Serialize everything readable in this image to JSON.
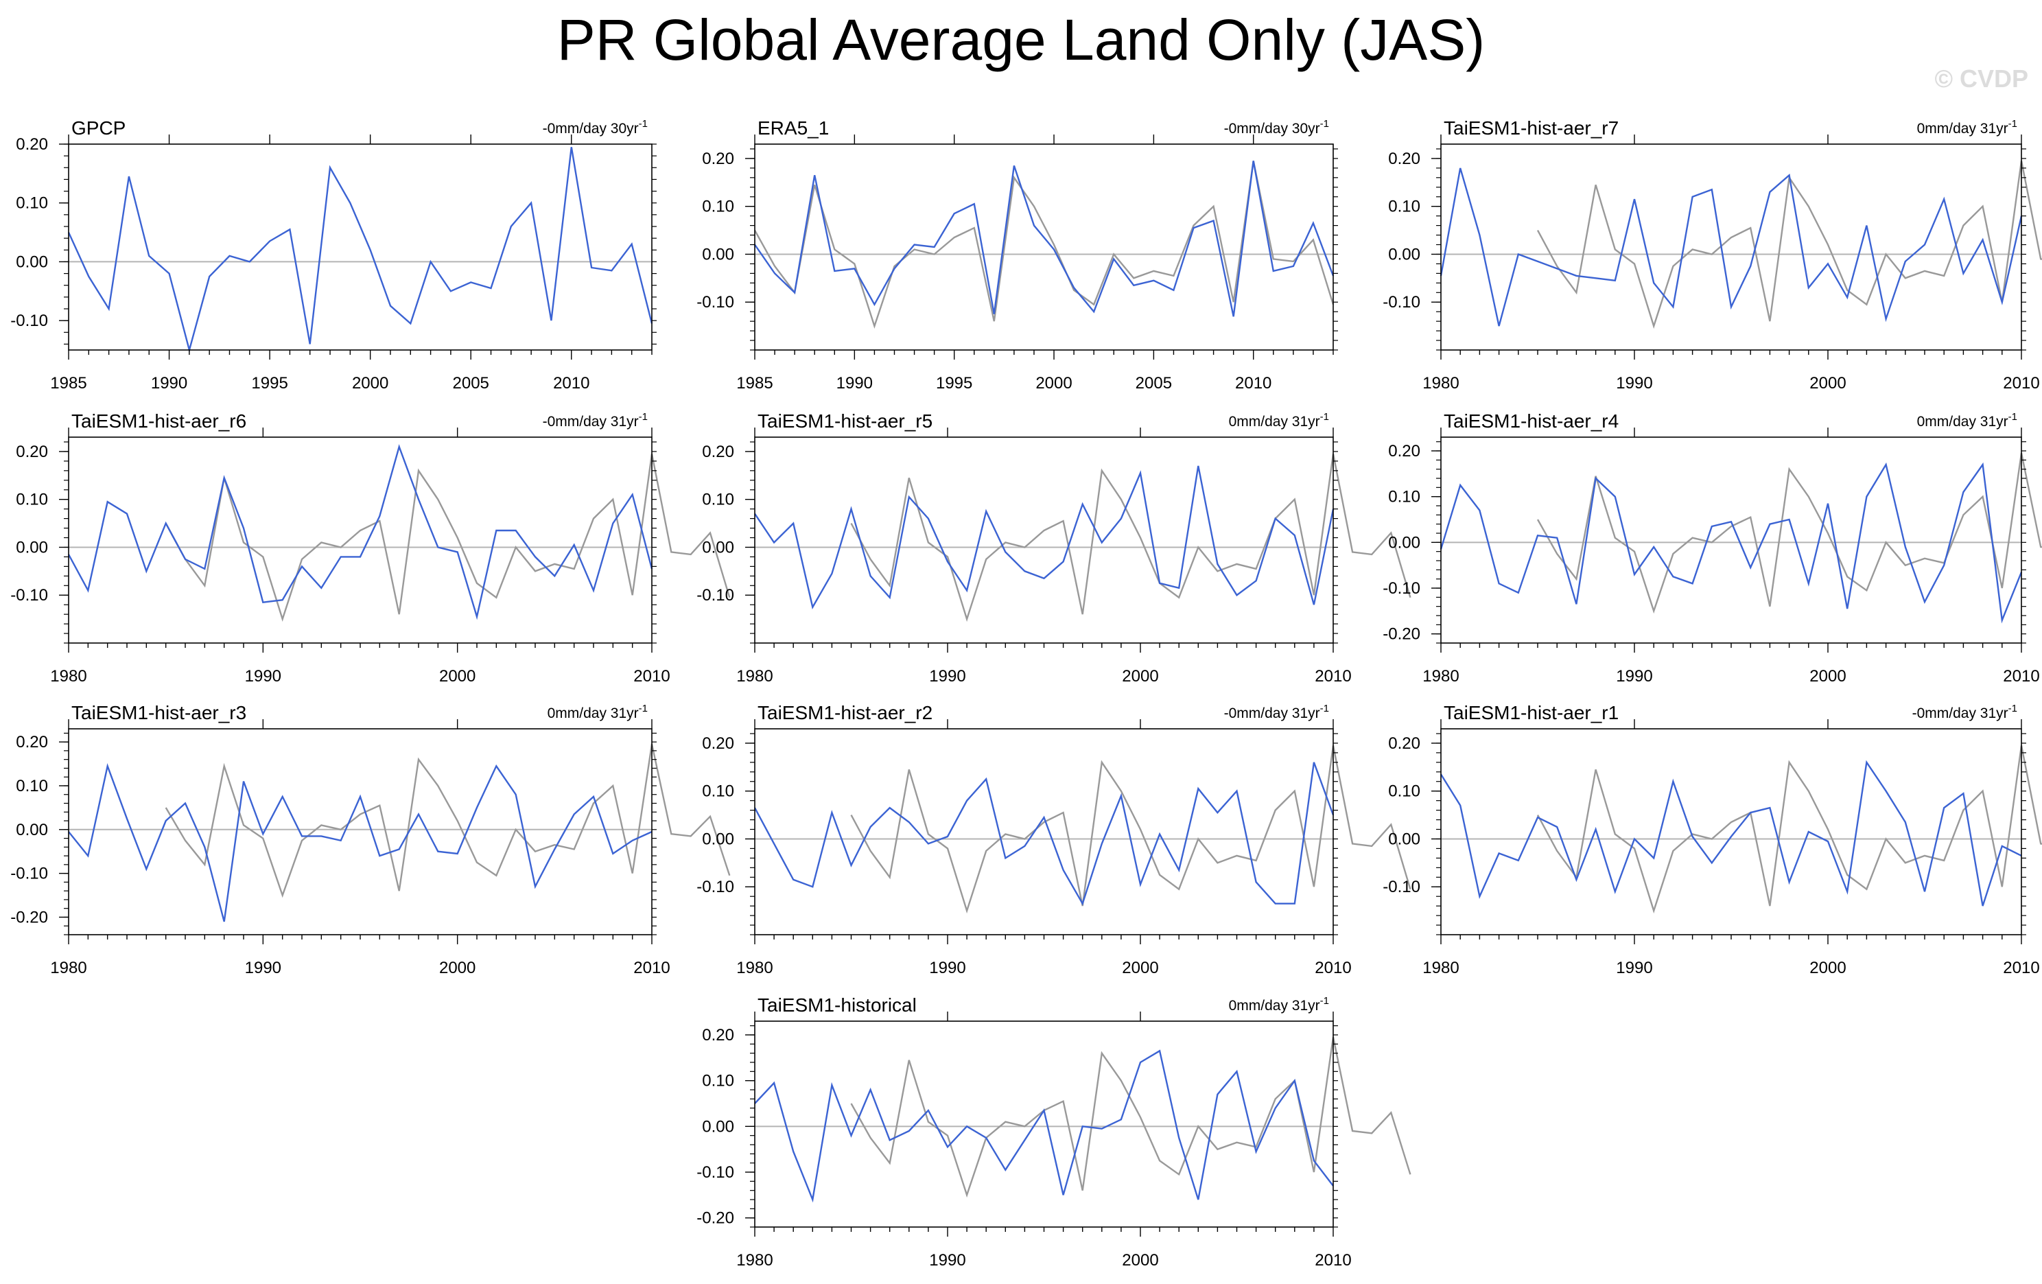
{
  "figure": {
    "title": "PR Global Average Land Only (JAS)",
    "watermark": "© CVDP",
    "colors": {
      "model": "#3b63d3",
      "obs": "#999999",
      "zero": "#b4b4b4",
      "axis": "#000000"
    }
  },
  "chart_data": [
    {
      "type": "line",
      "title": "GPCP",
      "trend": "-0mm/day 30yr",
      "trend_exp": "-1",
      "xlim": [
        1985,
        2014
      ],
      "ylim": [
        -0.15,
        0.2
      ],
      "xticks": [
        1985,
        1990,
        1995,
        2000,
        2005,
        2010
      ],
      "yticks": [
        -0.1,
        0.0,
        0.1,
        0.2
      ],
      "ytick_labels": [
        "-0.10",
        "0.00",
        "0.10",
        "0.20"
      ],
      "series": [
        {
          "name": "GPCP",
          "role": "model",
          "x_start": 1985,
          "values": [
            0.05,
            -0.025,
            -0.08,
            0.145,
            0.01,
            -0.02,
            -0.15,
            -0.025,
            0.01,
            0.0,
            0.035,
            0.055,
            -0.14,
            0.16,
            0.1,
            0.02,
            -0.075,
            -0.105,
            0.0,
            -0.05,
            -0.035,
            -0.045,
            0.06,
            0.1,
            -0.1,
            0.195,
            -0.01,
            -0.015,
            0.03,
            -0.105
          ]
        }
      ]
    },
    {
      "type": "line",
      "title": "ERA5_1",
      "trend": "-0mm/day 30yr",
      "trend_exp": "-1",
      "xlim": [
        1985,
        2014
      ],
      "ylim": [
        -0.2,
        0.23
      ],
      "xticks": [
        1985,
        1990,
        1995,
        2000,
        2005,
        2010
      ],
      "yticks": [
        -0.1,
        0.0,
        0.1,
        0.2
      ],
      "ytick_labels": [
        "-0.10",
        "0.00",
        "0.10",
        "0.20"
      ],
      "series": [
        {
          "name": "GPCP",
          "role": "obs",
          "x_start": 1985,
          "values": [
            0.05,
            -0.025,
            -0.08,
            0.145,
            0.01,
            -0.02,
            -0.15,
            -0.025,
            0.01,
            0.0,
            0.035,
            0.055,
            -0.14,
            0.16,
            0.1,
            0.02,
            -0.075,
            -0.105,
            0.0,
            -0.05,
            -0.035,
            -0.045,
            0.06,
            0.1,
            -0.1,
            0.195,
            -0.01,
            -0.015,
            0.03,
            -0.105
          ]
        },
        {
          "name": "ERA5_1",
          "role": "model",
          "x_start": 1985,
          "values": [
            0.02,
            -0.04,
            -0.08,
            0.165,
            -0.035,
            -0.03,
            -0.105,
            -0.03,
            0.02,
            0.015,
            0.085,
            0.105,
            -0.125,
            0.185,
            0.06,
            0.01,
            -0.07,
            -0.12,
            -0.01,
            -0.065,
            -0.055,
            -0.075,
            0.055,
            0.07,
            -0.13,
            0.195,
            -0.035,
            -0.025,
            0.065,
            -0.045
          ]
        }
      ]
    },
    {
      "type": "line",
      "title": "TaiESM1-hist-aer_r7",
      "trend": "0mm/day 31yr",
      "trend_exp": "-1",
      "xlim": [
        1980,
        2010
      ],
      "ylim": [
        -0.2,
        0.23
      ],
      "xticks": [
        1980,
        1990,
        2000,
        2010
      ],
      "yticks": [
        -0.1,
        0.0,
        0.1,
        0.2
      ],
      "ytick_labels": [
        "-0.10",
        "0.00",
        "0.10",
        "0.20"
      ],
      "series": [
        {
          "name": "GPCP",
          "role": "obs",
          "x_start": 1985,
          "values": [
            0.05,
            -0.025,
            -0.08,
            0.145,
            0.01,
            -0.02,
            -0.15,
            -0.025,
            0.01,
            0.0,
            0.035,
            0.055,
            -0.14,
            0.16,
            0.1,
            0.02,
            -0.075,
            -0.105,
            0.0,
            -0.05,
            -0.035,
            -0.045,
            0.06,
            0.1,
            -0.1,
            0.195,
            -0.01,
            -0.015,
            0.03,
            -0.105
          ]
        },
        {
          "name": "TaiESM1-hist-aer_r7",
          "role": "model",
          "x_start": 1980,
          "values": [
            -0.045,
            0.18,
            0.04,
            -0.15,
            0.0,
            -0.015,
            -0.03,
            -0.045,
            -0.05,
            -0.055,
            0.115,
            -0.06,
            -0.11,
            0.12,
            0.135,
            -0.11,
            -0.025,
            0.13,
            0.165,
            -0.07,
            -0.02,
            -0.09,
            0.06,
            -0.135,
            -0.015,
            0.02,
            0.115,
            -0.04,
            0.03,
            -0.1,
            0.08
          ]
        }
      ]
    },
    {
      "type": "line",
      "title": "TaiESM1-hist-aer_r6",
      "trend": "-0mm/day 31yr",
      "trend_exp": "-1",
      "xlim": [
        1980,
        2010
      ],
      "ylim": [
        -0.2,
        0.23
      ],
      "xticks": [
        1980,
        1990,
        2000,
        2010
      ],
      "yticks": [
        -0.1,
        0.0,
        0.1,
        0.2
      ],
      "ytick_labels": [
        "-0.10",
        "0.00",
        "0.10",
        "0.20"
      ],
      "series": [
        {
          "name": "GPCP",
          "role": "obs",
          "x_start": 1985,
          "values": [
            0.05,
            -0.025,
            -0.08,
            0.145,
            0.01,
            -0.02,
            -0.15,
            -0.025,
            0.01,
            0.0,
            0.035,
            0.055,
            -0.14,
            0.16,
            0.1,
            0.02,
            -0.075,
            -0.105,
            0.0,
            -0.05,
            -0.035,
            -0.045,
            0.06,
            0.1,
            -0.1,
            0.195,
            -0.01,
            -0.015,
            0.03,
            -0.105
          ]
        },
        {
          "name": "TaiESM1-hist-aer_r6",
          "role": "model",
          "x_start": 1980,
          "values": [
            -0.015,
            -0.09,
            0.095,
            0.07,
            -0.05,
            0.05,
            -0.025,
            -0.045,
            0.145,
            0.04,
            -0.115,
            -0.11,
            -0.04,
            -0.085,
            -0.02,
            -0.02,
            0.065,
            0.21,
            0.1,
            0.0,
            -0.01,
            -0.145,
            0.035,
            0.035,
            -0.02,
            -0.06,
            0.005,
            -0.09,
            0.05,
            0.11,
            -0.045
          ]
        }
      ]
    },
    {
      "type": "line",
      "title": "TaiESM1-hist-aer_r5",
      "trend": "0mm/day 31yr",
      "trend_exp": "-1",
      "xlim": [
        1980,
        2010
      ],
      "ylim": [
        -0.2,
        0.23
      ],
      "xticks": [
        1980,
        1990,
        2000,
        2010
      ],
      "yticks": [
        -0.1,
        0.0,
        0.1,
        0.2
      ],
      "ytick_labels": [
        "-0.10",
        "0.00",
        "0.10",
        "0.20"
      ],
      "series": [
        {
          "name": "GPCP",
          "role": "obs",
          "x_start": 1985,
          "values": [
            0.05,
            -0.025,
            -0.08,
            0.145,
            0.01,
            -0.02,
            -0.15,
            -0.025,
            0.01,
            0.0,
            0.035,
            0.055,
            -0.14,
            0.16,
            0.1,
            0.02,
            -0.075,
            -0.105,
            0.0,
            -0.05,
            -0.035,
            -0.045,
            0.06,
            0.1,
            -0.1,
            0.195,
            -0.01,
            -0.015,
            0.03,
            -0.105
          ]
        },
        {
          "name": "TaiESM1-hist-aer_r5",
          "role": "model",
          "x_start": 1980,
          "values": [
            0.07,
            0.01,
            0.05,
            -0.125,
            -0.055,
            0.08,
            -0.06,
            -0.105,
            0.105,
            0.06,
            -0.03,
            -0.09,
            0.075,
            -0.01,
            -0.05,
            -0.065,
            -0.03,
            0.09,
            0.01,
            0.06,
            0.155,
            -0.075,
            -0.085,
            0.17,
            -0.035,
            -0.1,
            -0.07,
            0.06,
            0.025,
            -0.12,
            0.08
          ]
        }
      ]
    },
    {
      "type": "line",
      "title": "TaiESM1-hist-aer_r4",
      "trend": "0mm/day 31yr",
      "trend_exp": "-1",
      "xlim": [
        1980,
        2010
      ],
      "ylim": [
        -0.22,
        0.23
      ],
      "xticks": [
        1980,
        1990,
        2000,
        2010
      ],
      "yticks": [
        -0.2,
        -0.1,
        0.0,
        0.1,
        0.2
      ],
      "ytick_labels": [
        "-0.20",
        "-0.10",
        "0.00",
        "0.10",
        "0.20"
      ],
      "series": [
        {
          "name": "GPCP",
          "role": "obs",
          "x_start": 1985,
          "values": [
            0.05,
            -0.025,
            -0.08,
            0.145,
            0.01,
            -0.02,
            -0.15,
            -0.025,
            0.01,
            0.0,
            0.035,
            0.055,
            -0.14,
            0.16,
            0.1,
            0.02,
            -0.075,
            -0.105,
            0.0,
            -0.05,
            -0.035,
            -0.045,
            0.06,
            0.1,
            -0.1,
            0.195,
            -0.01,
            -0.015,
            0.03,
            -0.105
          ]
        },
        {
          "name": "TaiESM1-hist-aer_r4",
          "role": "model",
          "x_start": 1980,
          "values": [
            -0.015,
            0.125,
            0.07,
            -0.09,
            -0.11,
            0.015,
            0.01,
            -0.135,
            0.14,
            0.1,
            -0.07,
            -0.01,
            -0.075,
            -0.09,
            0.035,
            0.045,
            -0.055,
            0.04,
            0.05,
            -0.09,
            0.085,
            -0.145,
            0.1,
            0.17,
            -0.01,
            -0.13,
            -0.05,
            0.11,
            0.17,
            -0.17,
            -0.065
          ]
        }
      ]
    },
    {
      "type": "line",
      "title": "TaiESM1-hist-aer_r3",
      "trend": "0mm/day 31yr",
      "trend_exp": "-1",
      "xlim": [
        1980,
        2010
      ],
      "ylim": [
        -0.24,
        0.23
      ],
      "xticks": [
        1980,
        1990,
        2000,
        2010
      ],
      "yticks": [
        -0.2,
        -0.1,
        0.0,
        0.1,
        0.2
      ],
      "ytick_labels": [
        "-0.20",
        "-0.10",
        "0.00",
        "0.10",
        "0.20"
      ],
      "series": [
        {
          "name": "GPCP",
          "role": "obs",
          "x_start": 1985,
          "values": [
            0.05,
            -0.025,
            -0.08,
            0.145,
            0.01,
            -0.02,
            -0.15,
            -0.025,
            0.01,
            0.0,
            0.035,
            0.055,
            -0.14,
            0.16,
            0.1,
            0.02,
            -0.075,
            -0.105,
            0.0,
            -0.05,
            -0.035,
            -0.045,
            0.06,
            0.1,
            -0.1,
            0.195,
            -0.01,
            -0.015,
            0.03,
            -0.105
          ]
        },
        {
          "name": "TaiESM1-hist-aer_r3",
          "role": "model",
          "x_start": 1980,
          "values": [
            -0.005,
            -0.06,
            0.145,
            0.025,
            -0.09,
            0.02,
            0.06,
            -0.04,
            -0.21,
            0.11,
            -0.01,
            0.075,
            -0.015,
            -0.015,
            -0.025,
            0.075,
            -0.06,
            -0.045,
            0.035,
            -0.05,
            -0.055,
            0.05,
            0.145,
            0.08,
            -0.13,
            -0.045,
            0.035,
            0.075,
            -0.055,
            -0.025,
            -0.005
          ]
        }
      ]
    },
    {
      "type": "line",
      "title": "TaiESM1-hist-aer_r2",
      "trend": "-0mm/day 31yr",
      "trend_exp": "-1",
      "xlim": [
        1980,
        2010
      ],
      "ylim": [
        -0.2,
        0.23
      ],
      "xticks": [
        1980,
        1990,
        2000,
        2010
      ],
      "yticks": [
        -0.1,
        0.0,
        0.1,
        0.2
      ],
      "ytick_labels": [
        "-0.10",
        "0.00",
        "0.10",
        "0.20"
      ],
      "series": [
        {
          "name": "GPCP",
          "role": "obs",
          "x_start": 1985,
          "values": [
            0.05,
            -0.025,
            -0.08,
            0.145,
            0.01,
            -0.02,
            -0.15,
            -0.025,
            0.01,
            0.0,
            0.035,
            0.055,
            -0.14,
            0.16,
            0.1,
            0.02,
            -0.075,
            -0.105,
            0.0,
            -0.05,
            -0.035,
            -0.045,
            0.06,
            0.1,
            -0.1,
            0.195,
            -0.01,
            -0.015,
            0.03,
            -0.105
          ]
        },
        {
          "name": "TaiESM1-hist-aer_r2",
          "role": "model",
          "x_start": 1980,
          "values": [
            0.065,
            -0.01,
            -0.085,
            -0.1,
            0.055,
            -0.055,
            0.025,
            0.065,
            0.035,
            -0.01,
            0.005,
            0.08,
            0.125,
            -0.04,
            -0.015,
            0.045,
            -0.065,
            -0.135,
            -0.01,
            0.09,
            -0.095,
            0.01,
            -0.065,
            0.105,
            0.055,
            0.1,
            -0.09,
            -0.135,
            -0.135,
            0.16,
            0.05
          ]
        }
      ]
    },
    {
      "type": "line",
      "title": "TaiESM1-hist-aer_r1",
      "trend": "-0mm/day 31yr",
      "trend_exp": "-1",
      "xlim": [
        1980,
        2010
      ],
      "ylim": [
        -0.2,
        0.23
      ],
      "xticks": [
        1980,
        1990,
        2000,
        2010
      ],
      "yticks": [
        -0.1,
        0.0,
        0.1,
        0.2
      ],
      "ytick_labels": [
        "-0.10",
        "0.00",
        "0.10",
        "0.20"
      ],
      "series": [
        {
          "name": "GPCP",
          "role": "obs",
          "x_start": 1985,
          "values": [
            0.05,
            -0.025,
            -0.08,
            0.145,
            0.01,
            -0.02,
            -0.15,
            -0.025,
            0.01,
            0.0,
            0.035,
            0.055,
            -0.14,
            0.16,
            0.1,
            0.02,
            -0.075,
            -0.105,
            0.0,
            -0.05,
            -0.035,
            -0.045,
            0.06,
            0.1,
            -0.1,
            0.195,
            -0.01,
            -0.015,
            0.03,
            -0.105
          ]
        },
        {
          "name": "TaiESM1-hist-aer_r1",
          "role": "model",
          "x_start": 1980,
          "values": [
            0.135,
            0.07,
            -0.12,
            -0.03,
            -0.045,
            0.045,
            0.025,
            -0.085,
            0.02,
            -0.11,
            0.0,
            -0.04,
            0.12,
            0.005,
            -0.05,
            0.005,
            0.055,
            0.065,
            -0.09,
            0.015,
            -0.005,
            -0.11,
            0.16,
            0.1,
            0.035,
            -0.11,
            0.065,
            0.095,
            -0.14,
            -0.015,
            -0.035
          ]
        }
      ]
    },
    {
      "type": "line",
      "title": "TaiESM1-historical",
      "trend": "0mm/day 31yr",
      "trend_exp": "-1",
      "xlim": [
        1980,
        2010
      ],
      "ylim": [
        -0.22,
        0.23
      ],
      "xticks": [
        1980,
        1990,
        2000,
        2010
      ],
      "yticks": [
        -0.2,
        -0.1,
        0.0,
        0.1,
        0.2
      ],
      "ytick_labels": [
        "-0.20",
        "-0.10",
        "0.00",
        "0.10",
        "0.20"
      ],
      "series": [
        {
          "name": "GPCP",
          "role": "obs",
          "x_start": 1985,
          "values": [
            0.05,
            -0.025,
            -0.08,
            0.145,
            0.01,
            -0.02,
            -0.15,
            -0.025,
            0.01,
            0.0,
            0.035,
            0.055,
            -0.14,
            0.16,
            0.1,
            0.02,
            -0.075,
            -0.105,
            0.0,
            -0.05,
            -0.035,
            -0.045,
            0.06,
            0.1,
            -0.1,
            0.195,
            -0.01,
            -0.015,
            0.03,
            -0.105
          ]
        },
        {
          "name": "TaiESM1-historical",
          "role": "model",
          "x_start": 1980,
          "values": [
            0.05,
            0.095,
            -0.055,
            -0.16,
            0.09,
            -0.02,
            0.08,
            -0.03,
            -0.01,
            0.035,
            -0.045,
            0.0,
            -0.025,
            -0.095,
            -0.03,
            0.035,
            -0.15,
            0.0,
            -0.005,
            0.015,
            0.14,
            0.165,
            -0.025,
            -0.16,
            0.07,
            0.12,
            -0.055,
            0.04,
            0.1,
            -0.075,
            -0.13
          ]
        }
      ]
    }
  ]
}
